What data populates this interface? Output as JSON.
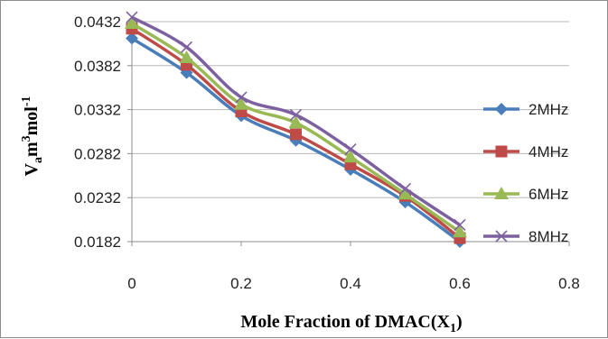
{
  "chart_data": {
    "type": "line",
    "title": "",
    "xlabel_main": "Mole Fraction of DMAC(X",
    "xlabel_sub": "1",
    "xlabel_close": ")",
    "ylabel_v": "V",
    "ylabel_a": "a",
    "ylabel_m": "m",
    "ylabel_exp3": "3",
    "ylabel_mol": "mol",
    "ylabel_expneg1": "-1",
    "xlim": [
      0,
      0.8
    ],
    "ylim": [
      0.0182,
      0.0432
    ],
    "x_ticks": [
      "0",
      "0.2",
      "0.4",
      "0.6",
      "0.8"
    ],
    "y_ticks": [
      "0.0432",
      "0.0382",
      "0.0332",
      "0.0282",
      "0.0232",
      "0.0182"
    ],
    "grid": "horizontal",
    "legend_position": "right",
    "x": [
      0,
      0.1,
      0.2,
      0.3,
      0.4,
      0.5,
      0.6
    ],
    "series": [
      {
        "name": "2MHz",
        "color": "#4a7ebb",
        "marker": "diamond",
        "values": [
          0.0413,
          0.0374,
          0.0325,
          0.0297,
          0.0264,
          0.0227,
          0.0182
        ]
      },
      {
        "name": "4MHz",
        "color": "#be4b48",
        "marker": "square",
        "values": [
          0.0424,
          0.0383,
          0.033,
          0.0304,
          0.027,
          0.0234,
          0.0186
        ]
      },
      {
        "name": "6MHz",
        "color": "#98b954",
        "marker": "triangle",
        "values": [
          0.043,
          0.0391,
          0.0338,
          0.0317,
          0.0278,
          0.0236,
          0.0193
        ]
      },
      {
        "name": "8MHz",
        "color": "#7d60a0",
        "marker": "x",
        "values": [
          0.0437,
          0.0403,
          0.0346,
          0.0326,
          0.0287,
          0.0242,
          0.0201
        ]
      }
    ]
  }
}
